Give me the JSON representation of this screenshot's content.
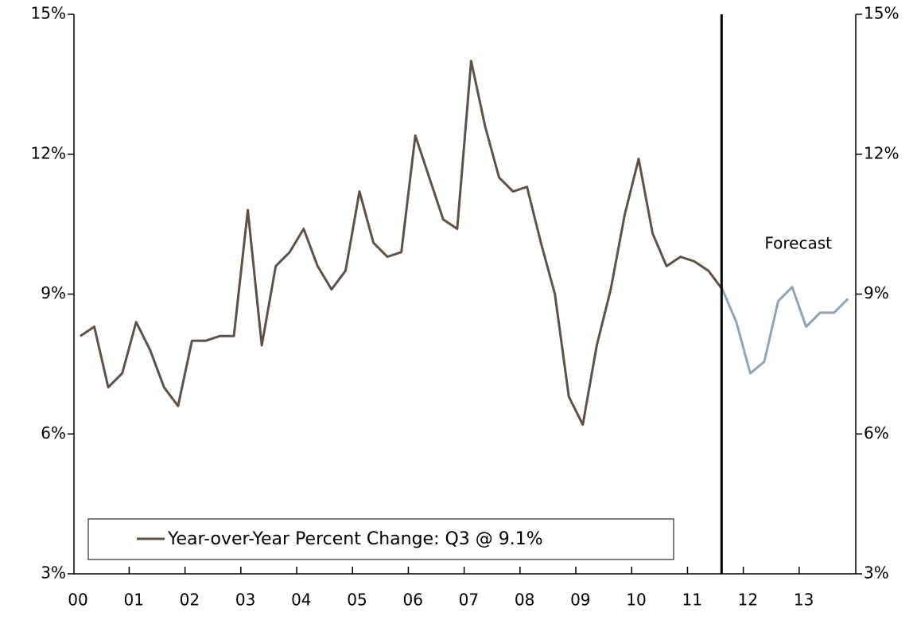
{
  "chart_data": {
    "type": "line",
    "annotation": "Forecast",
    "categories": [
      "00",
      null,
      null,
      null,
      "01",
      null,
      null,
      null,
      "02",
      null,
      null,
      null,
      "03",
      null,
      null,
      null,
      "04",
      null,
      null,
      null,
      "05",
      null,
      null,
      null,
      "06",
      null,
      null,
      null,
      "07",
      null,
      null,
      null,
      "08",
      null,
      null,
      null,
      "09",
      null,
      null,
      null,
      "10",
      null,
      null,
      null,
      "11",
      null,
      null,
      null,
      "12",
      null,
      null,
      null,
      "13",
      null,
      null,
      null
    ],
    "series": [
      {
        "name": "Year-over-Year Percent Change: Q3 @ 9.1%",
        "color": "#5f5146",
        "values": [
          8.1,
          8.3,
          7.0,
          7.3,
          8.4,
          7.8,
          7.0,
          6.6,
          8.0,
          8.0,
          8.1,
          8.1,
          10.8,
          7.9,
          9.6,
          9.9,
          10.4,
          9.6,
          9.1,
          9.5,
          11.2,
          10.1,
          9.8,
          9.9,
          12.4,
          11.5,
          10.6,
          10.4,
          14.0,
          12.6,
          11.5,
          11.2,
          11.3,
          10.1,
          9.0,
          6.8,
          6.2,
          7.9,
          9.1,
          10.7,
          11.9,
          10.3,
          9.6,
          9.8,
          9.7,
          9.5,
          9.1,
          null,
          null,
          null,
          null,
          null,
          null,
          null,
          null,
          null
        ]
      },
      {
        "color": "#8fa5b5",
        "values": [
          null,
          null,
          null,
          null,
          null,
          null,
          null,
          null,
          null,
          null,
          null,
          null,
          null,
          null,
          null,
          null,
          null,
          null,
          null,
          null,
          null,
          null,
          null,
          null,
          null,
          null,
          null,
          null,
          null,
          null,
          null,
          null,
          null,
          null,
          null,
          null,
          null,
          null,
          null,
          null,
          null,
          null,
          null,
          null,
          null,
          null,
          9.1,
          8.4,
          7.3,
          7.55,
          8.85,
          9.15,
          8.3,
          8.6,
          8.6,
          8.9
        ]
      }
    ],
    "ylim": [
      3,
      15
    ],
    "yticks": [
      {
        "value": 3,
        "label": "3%"
      },
      {
        "value": 6,
        "label": "6%"
      },
      {
        "value": 9,
        "label": "9%"
      },
      {
        "value": 12,
        "label": "12%"
      },
      {
        "value": 15,
        "label": "15%"
      }
    ],
    "y2lim": [
      3,
      15
    ],
    "y2ticks": [
      {
        "value": 3,
        "label": "3%"
      },
      {
        "value": 6,
        "label": "6%"
      },
      {
        "value": 9,
        "label": "9%"
      },
      {
        "value": 12,
        "label": "12%"
      },
      {
        "value": 15,
        "label": "15%"
      }
    ],
    "grid": false
  }
}
